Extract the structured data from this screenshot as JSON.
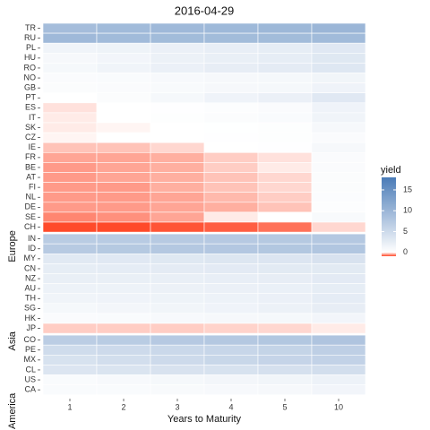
{
  "chart_data": {
    "type": "heatmap",
    "title": "2016-04-29",
    "xlabel": "Years to Maturity",
    "categories": [
      "1",
      "2",
      "3",
      "4",
      "5",
      "10"
    ],
    "legend_title": "yield",
    "clim": [
      -0.9,
      18
    ],
    "cticks": [
      0,
      5,
      10,
      15
    ],
    "colors": {
      "low": "#ff4a2a",
      "mid": "#ffffff",
      "high": "#4a7bb7"
    },
    "groups": [
      {
        "name": "Europe",
        "rows": [
          "TR",
          "RU",
          "PL",
          "HU",
          "RO",
          "NO",
          "GB",
          "PT",
          "ES",
          "IT",
          "SK",
          "CZ",
          "IE",
          "FR",
          "BE",
          "AT",
          "FI",
          "NL",
          "DE",
          "SE",
          "CH"
        ],
        "values": [
          [
            9.0,
            9.3,
            9.5,
            9.6,
            9.7,
            9.9
          ],
          [
            9.5,
            9.3,
            9.2,
            9.2,
            9.2,
            9.3
          ],
          [
            1.5,
            1.7,
            2.0,
            2.3,
            2.5,
            3.1
          ],
          [
            0.9,
            1.3,
            1.9,
            2.2,
            2.5,
            3.2
          ],
          [
            1.0,
            1.5,
            2.0,
            2.4,
            2.7,
            3.3
          ],
          [
            0.5,
            0.6,
            0.8,
            0.9,
            1.0,
            1.4
          ],
          [
            0.4,
            0.5,
            0.7,
            0.9,
            1.0,
            1.6
          ],
          [
            0.0,
            0.4,
            1.0,
            1.6,
            2.0,
            3.1
          ],
          [
            -0.15,
            0.0,
            0.1,
            0.3,
            0.5,
            1.6
          ],
          [
            -0.1,
            0.0,
            0.2,
            0.4,
            0.6,
            1.5
          ],
          [
            -0.1,
            -0.05,
            0.0,
            0.05,
            0.2,
            0.9
          ],
          [
            -0.05,
            0.0,
            0.0,
            0.1,
            0.2,
            0.5
          ],
          [
            -0.3,
            -0.3,
            -0.2,
            0.0,
            0.1,
            0.9
          ],
          [
            -0.45,
            -0.45,
            -0.4,
            -0.25,
            -0.15,
            0.5
          ],
          [
            -0.5,
            -0.45,
            -0.4,
            -0.25,
            -0.1,
            0.5
          ],
          [
            -0.5,
            -0.45,
            -0.4,
            -0.3,
            -0.2,
            0.4
          ],
          [
            -0.5,
            -0.5,
            -0.4,
            -0.3,
            -0.2,
            0.4
          ],
          [
            -0.5,
            -0.5,
            -0.45,
            -0.35,
            -0.25,
            0.35
          ],
          [
            -0.5,
            -0.5,
            -0.45,
            -0.4,
            -0.3,
            0.25
          ],
          [
            -0.6,
            -0.55,
            -0.45,
            -0.1,
            0.0,
            0.7
          ],
          [
            -0.9,
            -0.9,
            -0.85,
            -0.8,
            -0.7,
            -0.2
          ]
        ]
      },
      {
        "name": "Asia",
        "rows": [
          "IN",
          "ID",
          "MY",
          "CN",
          "NZ",
          "AU",
          "TH",
          "SG",
          "HK",
          "JP"
        ],
        "values": [
          [
            7.0,
            7.1,
            7.2,
            7.3,
            7.4,
            7.5
          ],
          [
            7.2,
            7.4,
            7.5,
            7.6,
            7.7,
            7.8
          ],
          [
            3.0,
            3.1,
            3.2,
            3.4,
            3.5,
            3.9
          ],
          [
            2.5,
            2.6,
            2.7,
            2.8,
            2.9,
            2.9
          ],
          [
            2.2,
            2.2,
            2.2,
            2.3,
            2.4,
            2.8
          ],
          [
            1.8,
            1.8,
            1.9,
            2.0,
            2.1,
            2.5
          ],
          [
            1.5,
            1.6,
            1.7,
            1.8,
            2.0,
            2.6
          ],
          [
            1.0,
            1.2,
            1.4,
            1.6,
            1.9,
            2.4
          ],
          [
            0.5,
            0.6,
            0.8,
            0.9,
            1.0,
            1.3
          ],
          [
            -0.25,
            -0.25,
            -0.25,
            -0.22,
            -0.2,
            -0.1
          ]
        ]
      },
      {
        "name": "America",
        "rows": [
          "CO",
          "PE",
          "MX",
          "CL",
          "US",
          "CA"
        ],
        "values": [
          [
            6.8,
            7.0,
            7.3,
            7.5,
            7.7,
            8.0
          ],
          [
            4.8,
            5.0,
            5.3,
            5.6,
            5.9,
            6.5
          ],
          [
            4.0,
            4.5,
            5.0,
            5.5,
            5.8,
            6.1
          ],
          [
            3.5,
            3.7,
            3.9,
            4.0,
            4.2,
            4.5
          ],
          [
            0.6,
            0.8,
            1.0,
            1.2,
            1.4,
            1.8
          ],
          [
            0.6,
            0.6,
            0.7,
            0.8,
            0.9,
            1.3
          ]
        ]
      }
    ]
  }
}
